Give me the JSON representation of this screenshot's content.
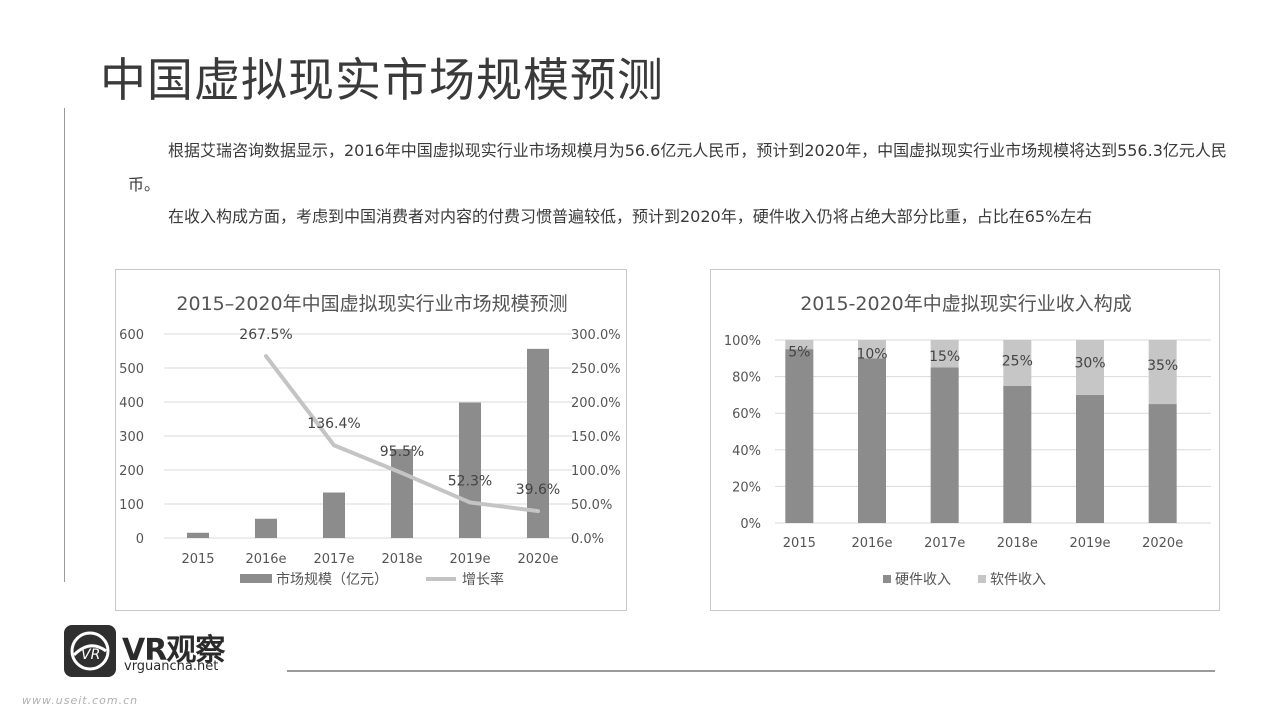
{
  "page": {
    "title": "中国虚拟现实市场规模预测",
    "paragraph1": "根据艾瑞咨询数据显示，2016年中国虚拟现实行业市场规模月为56.6亿元人民币，预计到2020年，中国虚拟现实行业市场规模将达到556.3亿元人民币。",
    "paragraph2": "在收入构成方面，考虑到中国消费者对内容的付费习惯普遍较低，预计到2020年，硬件收入仍将占绝大部分比重，占比在65%左右"
  },
  "logo": {
    "text": "VR观察",
    "url": "vrguancha.net"
  },
  "watermark": "www.useit.com.cn",
  "colors": {
    "bar": "#8c8c8c",
    "line": "#c4c4c4",
    "hardware": "#8c8c8c",
    "software": "#c6c6c6",
    "grid": "#d9d9d9"
  },
  "chart_data": [
    {
      "type": "bar",
      "title": "2015–2020年中国虚拟现实行业市场规模预测",
      "categories": [
        "2015",
        "2016e",
        "2017e",
        "2018e",
        "2019e",
        "2020e"
      ],
      "series": [
        {
          "name": "市场规模（亿元）",
          "type": "bar",
          "axis": "left",
          "values": [
            15.4,
            56.6,
            133.8,
            261.5,
            398.3,
            556.3
          ]
        },
        {
          "name": "增长率",
          "type": "line",
          "axis": "right",
          "values": [
            null,
            267.5,
            136.4,
            95.5,
            52.3,
            39.6
          ],
          "labels": [
            "",
            "267.5%",
            "136.4%",
            "95.5%",
            "52.3%",
            "39.6%"
          ]
        }
      ],
      "ylim": [
        0,
        600
      ],
      "y_ticks": [
        "0",
        "100",
        "200",
        "300",
        "400",
        "500",
        "600"
      ],
      "y2lim": [
        0,
        300
      ],
      "y2_ticks": [
        "0.0%",
        "50.0%",
        "100.0%",
        "150.0%",
        "200.0%",
        "250.0%",
        "300.0%"
      ],
      "grid": true,
      "legend": "bottom"
    },
    {
      "type": "bar",
      "stacked": true,
      "title": "2015-2020年中虚拟现实行业收入构成",
      "categories": [
        "2015",
        "2016e",
        "2017e",
        "2018e",
        "2019e",
        "2020e"
      ],
      "series": [
        {
          "name": "硬件收入",
          "values": [
            95,
            90,
            85,
            75,
            70,
            65
          ]
        },
        {
          "name": "软件收入",
          "values": [
            5,
            10,
            15,
            25,
            30,
            35
          ],
          "labels": [
            "5%",
            "10%",
            "15%",
            "25%",
            "30%",
            "35%"
          ]
        }
      ],
      "ylim": [
        0,
        100
      ],
      "y_ticks": [
        "0%",
        "20%",
        "40%",
        "60%",
        "80%",
        "100%"
      ],
      "grid": true,
      "legend": "bottom"
    }
  ]
}
